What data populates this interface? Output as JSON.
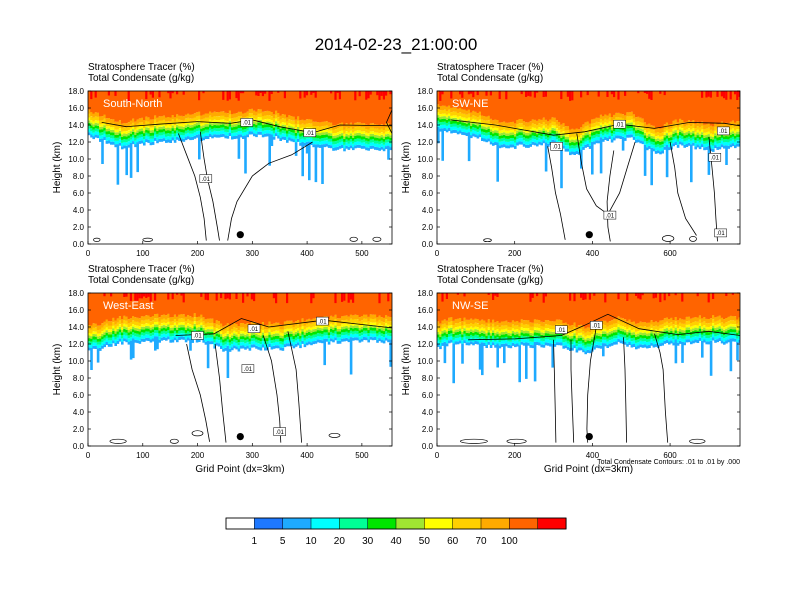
{
  "title": "2014-02-23_21:00:00",
  "colors": {
    "scale": [
      "#ffffff",
      "#1e78ff",
      "#1eaaff",
      "#00ffff",
      "#00ff96",
      "#00e600",
      "#a0e632",
      "#ffff00",
      "#ffd000",
      "#ffaa00",
      "#ff6400",
      "#ff0000"
    ],
    "contour": "#000000",
    "marker": "#000000"
  },
  "chart_data": [
    {
      "type": "heatmap",
      "panel_label": "South-North",
      "subtitle_1": "Stratosphere Tracer   (%)",
      "subtitle_2": "Total Condensate   (g/kg)",
      "ylabel": "Height (km)",
      "xlabel": "",
      "xlim": [
        0,
        555
      ],
      "ylim": [
        0,
        18
      ],
      "xticks": [
        "0",
        "100",
        "200",
        "300",
        "400",
        "500"
      ],
      "xtick_values": [
        0,
        100,
        200,
        300,
        400,
        500
      ],
      "yticks": [
        "0.0",
        "2.0",
        "4.0",
        "6.0",
        "8.0",
        "10.0",
        "12.0",
        "14.0",
        "16.0",
        "18.0"
      ],
      "marker_point": [
        278,
        1.1
      ],
      "tracer_base_km": [
        [
          0,
          12.7
        ],
        [
          60,
          11.3
        ],
        [
          100,
          11.8
        ],
        [
          150,
          12.1
        ],
        [
          210,
          12.4
        ],
        [
          260,
          12.5
        ],
        [
          320,
          12.8
        ],
        [
          400,
          11.5
        ],
        [
          450,
          11.1
        ],
        [
          520,
          11.2
        ],
        [
          555,
          11.0
        ]
      ],
      "contour_labels": [
        {
          "text": ".01",
          "x": 290,
          "y": 14.3
        },
        {
          "text": ".01",
          "x": 405,
          "y": 13.1
        },
        {
          "text": ".01",
          "x": 215,
          "y": 7.7
        }
      ],
      "contour_lines": [
        [
          [
            25,
            14.3
          ],
          [
            70,
            13.8
          ],
          [
            130,
            14.1
          ],
          [
            200,
            14.4
          ],
          [
            260,
            14.2
          ],
          [
            300,
            14.6
          ],
          [
            350,
            13.8
          ],
          [
            410,
            13.1
          ],
          [
            460,
            14.0
          ],
          [
            555,
            13.9
          ]
        ],
        [
          [
            165,
            13.0
          ],
          [
            180,
            10.5
          ],
          [
            195,
            8.0
          ],
          [
            205,
            5.5
          ],
          [
            212,
            3.0
          ],
          [
            216,
            0.4
          ]
        ],
        [
          [
            205,
            13.2
          ],
          [
            212,
            10.0
          ],
          [
            218,
            7.7
          ],
          [
            228,
            5.0
          ],
          [
            236,
            2.0
          ],
          [
            240,
            0.4
          ]
        ],
        [
          [
            255,
            0.4
          ],
          [
            262,
            3.0
          ],
          [
            272,
            5.0
          ],
          [
            300,
            8.0
          ],
          [
            330,
            9.5
          ],
          [
            372,
            10.5
          ],
          [
            410,
            12.0
          ]
        ],
        [
          [
            560,
            16.5
          ],
          [
            545,
            14.3
          ],
          [
            555,
            13.0
          ]
        ]
      ],
      "cells": [
        {
          "x": [
            10,
            22
          ],
          "y": [
            0.3,
            0.7
          ]
        },
        {
          "x": [
            100,
            118
          ],
          "y": [
            0.3,
            0.7
          ]
        },
        {
          "x": [
            478,
            492
          ],
          "y": [
            0.3,
            0.8
          ]
        },
        {
          "x": [
            520,
            535
          ],
          "y": [
            0.3,
            0.8
          ]
        }
      ]
    },
    {
      "type": "heatmap",
      "panel_label": "SW-NE",
      "subtitle_1": "Stratosphere Tracer   (%)",
      "subtitle_2": "Total Condensate   (g/kg)",
      "ylabel": "Height (km)",
      "xlabel": "",
      "xlim": [
        0,
        780
      ],
      "ylim": [
        0,
        18
      ],
      "xticks": [
        "0",
        "200",
        "400",
        "600"
      ],
      "xtick_values": [
        0,
        200,
        400,
        600
      ],
      "yticks": [
        "0.0",
        "2.0",
        "4.0",
        "6.0",
        "8.0",
        "10.0",
        "12.0",
        "14.0",
        "16.0",
        "18.0"
      ],
      "marker_point": [
        392,
        1.1
      ],
      "tracer_base_km": [
        [
          0,
          13.3
        ],
        [
          100,
          12.5
        ],
        [
          160,
          11.3
        ],
        [
          220,
          11.5
        ],
        [
          300,
          11.7
        ],
        [
          350,
          10.4
        ],
        [
          420,
          12.0
        ],
        [
          500,
          12.4
        ],
        [
          560,
          10.6
        ],
        [
          620,
          11.6
        ],
        [
          700,
          11.0
        ],
        [
          780,
          11.4
        ]
      ],
      "contour_labels": [
        {
          "text": ".01",
          "x": 308,
          "y": 11.5
        },
        {
          "text": ".01",
          "x": 470,
          "y": 14.1
        },
        {
          "text": ".01",
          "x": 737,
          "y": 13.3
        },
        {
          "text": ".01",
          "x": 715,
          "y": 10.2
        },
        {
          "text": ".01",
          "x": 445,
          "y": 3.4
        },
        {
          "text": ".01",
          "x": 730,
          "y": 1.3
        }
      ],
      "contour_lines": [
        [
          [
            35,
            14.6
          ],
          [
            150,
            14.0
          ],
          [
            300,
            12.8
          ],
          [
            380,
            13.2
          ],
          [
            470,
            14.1
          ],
          [
            560,
            13.6
          ],
          [
            650,
            14.3
          ],
          [
            740,
            14.2
          ],
          [
            780,
            13.9
          ]
        ],
        [
          [
            285,
            11.5
          ],
          [
            295,
            9.0
          ],
          [
            305,
            6.0
          ],
          [
            318,
            3.5
          ],
          [
            330,
            0.5
          ]
        ],
        [
          [
            455,
            11.0
          ],
          [
            445,
            8.0
          ],
          [
            438,
            5.0
          ],
          [
            440,
            2.0
          ],
          [
            446,
            0.3
          ]
        ],
        [
          [
            600,
            12.0
          ],
          [
            612,
            9.0
          ],
          [
            620,
            6.0
          ],
          [
            640,
            3.0
          ],
          [
            668,
            1.0
          ]
        ],
        [
          [
            700,
            12.6
          ],
          [
            708,
            9.0
          ],
          [
            714,
            6.0
          ],
          [
            718,
            3.0
          ],
          [
            722,
            0.3
          ]
        ],
        [
          [
            360,
            13.0
          ],
          [
            372,
            9.5
          ],
          [
            385,
            6.5
          ],
          [
            410,
            4.5
          ],
          [
            440,
            3.5
          ],
          [
            470,
            6.0
          ],
          [
            490,
            9.0
          ],
          [
            510,
            12.0
          ]
        ]
      ],
      "cells": [
        {
          "x": [
            580,
            610
          ],
          "y": [
            0.3,
            1.0
          ]
        },
        {
          "x": [
            650,
            668
          ],
          "y": [
            0.3,
            0.9
          ]
        },
        {
          "x": [
            120,
            140
          ],
          "y": [
            0.3,
            0.6
          ]
        }
      ]
    },
    {
      "type": "heatmap",
      "panel_label": "West-East",
      "subtitle_1": "Stratosphere Tracer   (%)",
      "subtitle_2": "Total Condensate   (g/kg)",
      "ylabel": "Height (km)",
      "xlabel": "Grid Point (dx=3km)",
      "xlim": [
        0,
        555
      ],
      "ylim": [
        0,
        18
      ],
      "xticks": [
        "0",
        "100",
        "200",
        "300",
        "400",
        "500"
      ],
      "xtick_values": [
        0,
        100,
        200,
        300,
        400,
        500
      ],
      "yticks": [
        "0.0",
        "2.0",
        "4.0",
        "6.0",
        "8.0",
        "10.0",
        "12.0",
        "14.0",
        "16.0",
        "18.0"
      ],
      "marker_point": [
        278,
        1.1
      ],
      "tracer_base_km": [
        [
          0,
          11.1
        ],
        [
          60,
          12.1
        ],
        [
          120,
          12.3
        ],
        [
          200,
          12.4
        ],
        [
          250,
          11.2
        ],
        [
          300,
          11.5
        ],
        [
          350,
          11.4
        ],
        [
          420,
          12.1
        ],
        [
          480,
          12.3
        ],
        [
          555,
          12.3
        ]
      ],
      "contour_labels": [
        {
          "text": ".01",
          "x": 200,
          "y": 13.0
        },
        {
          "text": ".01",
          "x": 303,
          "y": 13.8
        },
        {
          "text": ".01",
          "x": 428,
          "y": 14.7
        },
        {
          "text": ".01",
          "x": 292,
          "y": 9.1
        },
        {
          "text": ".01",
          "x": 350,
          "y": 1.7
        }
      ],
      "contour_lines": [
        [
          [
            160,
            13.0
          ],
          [
            230,
            13.2
          ],
          [
            280,
            15.0
          ],
          [
            330,
            14.0
          ],
          [
            430,
            14.8
          ],
          [
            555,
            13.9
          ]
        ],
        [
          [
            180,
            12.0
          ],
          [
            190,
            9.0
          ],
          [
            205,
            6.0
          ],
          [
            215,
            3.0
          ],
          [
            222,
            0.5
          ]
        ],
        [
          [
            232,
            12.0
          ],
          [
            240,
            8.0
          ],
          [
            246,
            4.0
          ],
          [
            252,
            0.4
          ]
        ],
        [
          [
            320,
            13.0
          ],
          [
            335,
            10.0
          ],
          [
            345,
            6.0
          ],
          [
            350,
            3.0
          ],
          [
            352,
            0.4
          ]
        ],
        [
          [
            365,
            13.5
          ],
          [
            380,
            9.0
          ],
          [
            385,
            5.0
          ],
          [
            390,
            0.4
          ]
        ]
      ],
      "cells": [
        {
          "x": [
            40,
            70
          ],
          "y": [
            0.3,
            0.8
          ]
        },
        {
          "x": [
            150,
            165
          ],
          "y": [
            0.3,
            0.8
          ]
        },
        {
          "x": [
            190,
            210
          ],
          "y": [
            1.2,
            1.8
          ]
        },
        {
          "x": [
            440,
            460
          ],
          "y": [
            1.0,
            1.5
          ]
        }
      ]
    },
    {
      "type": "heatmap",
      "panel_label": "NW-SE",
      "subtitle_1": "Stratosphere Tracer   (%)",
      "subtitle_2": "Total Condensate   (g/kg)",
      "ylabel": "Height (km)",
      "xlabel": "Grid Point (dx=3km)",
      "note": "Total Condensate Contours: .01 to .01 by .000",
      "xlim": [
        0,
        780
      ],
      "ylim": [
        0,
        18
      ],
      "xticks": [
        "0",
        "200",
        "400",
        "600"
      ],
      "xtick_values": [
        0,
        200,
        400,
        600
      ],
      "yticks": [
        "0.0",
        "2.0",
        "4.0",
        "6.0",
        "8.0",
        "10.0",
        "12.0",
        "14.0",
        "16.0",
        "18.0"
      ],
      "marker_point": [
        392,
        1.1
      ],
      "tracer_base_km": [
        [
          0,
          11.5
        ],
        [
          30,
          12.0
        ],
        [
          150,
          11.6
        ],
        [
          300,
          11.8
        ],
        [
          380,
          11.0
        ],
        [
          460,
          12.1
        ],
        [
          520,
          11.5
        ],
        [
          600,
          12.0
        ],
        [
          700,
          12.2
        ],
        [
          780,
          12.1
        ]
      ],
      "contour_labels": [
        {
          "text": ".01",
          "x": 410,
          "y": 14.2
        },
        {
          "text": ".01",
          "x": 320,
          "y": 13.7
        }
      ],
      "contour_lines": [
        [
          [
            80,
            12.5
          ],
          [
            200,
            12.6
          ],
          [
            320,
            13.0
          ],
          [
            380,
            14.2
          ],
          [
            440,
            15.5
          ],
          [
            520,
            13.8
          ],
          [
            620,
            13.1
          ],
          [
            700,
            13.5
          ],
          [
            780,
            13.0
          ]
        ],
        [
          [
            300,
            12.5
          ],
          [
            302,
            9.0
          ],
          [
            304,
            5.0
          ],
          [
            306,
            0.4
          ]
        ],
        [
          [
            345,
            12.5
          ],
          [
            345,
            9.0
          ],
          [
            348,
            5.0
          ],
          [
            352,
            0.4
          ]
        ],
        [
          [
            410,
            14.0
          ],
          [
            395,
            10.0
          ],
          [
            388,
            6.0
          ],
          [
            386,
            2.0
          ],
          [
            388,
            0.4
          ]
        ],
        [
          [
            480,
            12.8
          ],
          [
            484,
            9.0
          ],
          [
            486,
            5.0
          ],
          [
            488,
            0.4
          ]
        ],
        [
          [
            560,
            13.2
          ],
          [
            574,
            11.0
          ],
          [
            582,
            9.0
          ],
          [
            588,
            4.0
          ],
          [
            594,
            0.4
          ]
        ]
      ],
      "cells": [
        {
          "x": [
            60,
            130
          ],
          "y": [
            0.3,
            0.8
          ]
        },
        {
          "x": [
            180,
            230
          ],
          "y": [
            0.3,
            0.8
          ]
        },
        {
          "x": [
            650,
            690
          ],
          "y": [
            0.3,
            0.8
          ]
        }
      ]
    }
  ],
  "colorbar": {
    "labels": [
      "1",
      "5",
      "10",
      "20",
      "30",
      "40",
      "50",
      "60",
      "70",
      "100"
    ],
    "boundaries": [
      1,
      5,
      10,
      20,
      30,
      40,
      50,
      60,
      70,
      100
    ]
  }
}
